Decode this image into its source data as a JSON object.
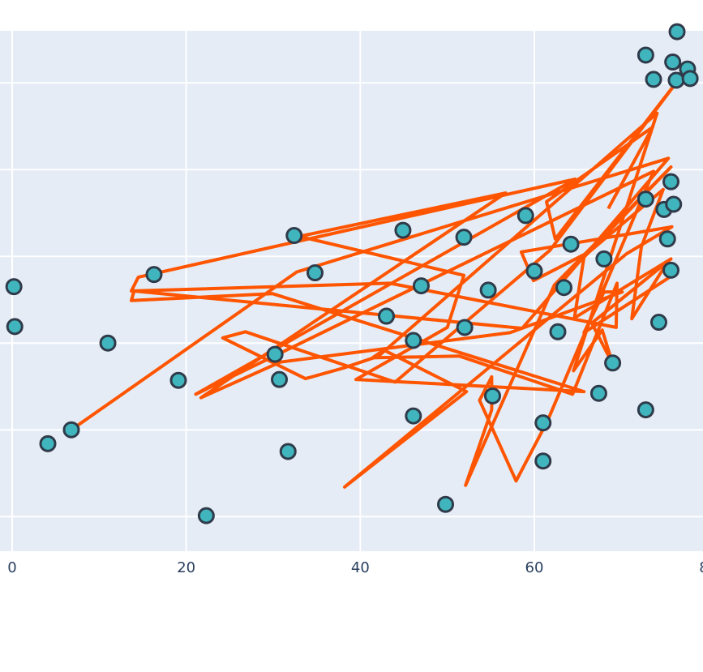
{
  "chart_data": {
    "type": "scatter",
    "x_ticks": [
      0,
      20,
      40,
      60,
      80
    ],
    "x_tick_labels": [
      "0",
      "20",
      "40",
      "60",
      "80"
    ],
    "xlim": [
      -1.5,
      79
    ],
    "ylim": [
      0,
      6
    ],
    "y_gridlines": [
      0.4,
      1.4,
      2.4,
      3.4,
      4.4,
      5.4
    ],
    "grid": true,
    "colors": {
      "background": "#e5ecf6",
      "grid": "#ffffff",
      "line": "#ff5500",
      "marker_fill": "#40b5bd",
      "marker_edge": "#2f3b4a"
    },
    "series": [
      {
        "mode": "markers",
        "points": [
          [
            0.2,
            3.05
          ],
          [
            0.3,
            2.59
          ],
          [
            4.1,
            1.24
          ],
          [
            6.8,
            1.4
          ],
          [
            11.0,
            2.4
          ],
          [
            16.3,
            3.19
          ],
          [
            19.1,
            1.97
          ],
          [
            22.3,
            0.41
          ],
          [
            30.2,
            2.27
          ],
          [
            30.7,
            1.98
          ],
          [
            31.7,
            1.15
          ],
          [
            32.4,
            3.64
          ],
          [
            34.8,
            3.21
          ],
          [
            43.0,
            2.71
          ],
          [
            44.9,
            3.7
          ],
          [
            46.1,
            2.43
          ],
          [
            46.1,
            1.56
          ],
          [
            47.0,
            3.06
          ],
          [
            49.8,
            0.54
          ],
          [
            51.9,
            3.62
          ],
          [
            52.0,
            2.58
          ],
          [
            54.7,
            3.01
          ],
          [
            55.2,
            1.79
          ],
          [
            59.0,
            3.87
          ],
          [
            60.0,
            3.23
          ],
          [
            61.0,
            1.48
          ],
          [
            61.0,
            1.04
          ],
          [
            62.7,
            2.53
          ],
          [
            63.4,
            3.04
          ],
          [
            64.2,
            3.54
          ],
          [
            67.4,
            1.82
          ],
          [
            68.0,
            3.37
          ],
          [
            69.0,
            2.17
          ],
          [
            72.8,
            5.72
          ],
          [
            72.8,
            4.06
          ],
          [
            72.8,
            1.63
          ],
          [
            73.7,
            5.44
          ],
          [
            74.3,
            2.64
          ],
          [
            74.9,
            3.94
          ],
          [
            75.3,
            3.6
          ],
          [
            75.7,
            4.26
          ],
          [
            75.7,
            3.24
          ],
          [
            75.9,
            5.64
          ],
          [
            76.0,
            4.0
          ],
          [
            76.3,
            5.43
          ],
          [
            76.4,
            5.99
          ],
          [
            77.6,
            5.56
          ],
          [
            77.9,
            5.45
          ]
        ]
      },
      {
        "mode": "lines",
        "points": [
          [
            6.8,
            1.4
          ],
          [
            32.7,
            3.22
          ],
          [
            75.4,
            4.53
          ],
          [
            58.6,
            2.57
          ],
          [
            14.0,
            3.0
          ],
          [
            13.7,
            2.89
          ],
          [
            29.9,
            2.97
          ],
          [
            65.7,
            1.84
          ],
          [
            39.5,
            1.98
          ],
          [
            50.0,
            2.58
          ],
          [
            51.9,
            3.18
          ],
          [
            33.0,
            3.63
          ],
          [
            56.7,
            4.13
          ],
          [
            21.7,
            1.77
          ],
          [
            30.8,
            2.18
          ],
          [
            57.2,
            2.52
          ],
          [
            70.1,
            2.99
          ],
          [
            68.0,
            2.99
          ],
          [
            65.7,
            2.52
          ],
          [
            75.4,
            3.15
          ],
          [
            75.4,
            3.35
          ],
          [
            71.2,
            2.68
          ],
          [
            72.3,
            3.51
          ],
          [
            74.8,
            4.17
          ],
          [
            66.3,
            3.45
          ],
          [
            59.9,
            3.12
          ],
          [
            58.5,
            3.45
          ],
          [
            75.8,
            3.74
          ],
          [
            70.6,
            3.43
          ],
          [
            38.2,
            0.74
          ],
          [
            52.2,
            1.84
          ],
          [
            42.7,
            2.32
          ],
          [
            41.4,
            2.23
          ],
          [
            51.4,
            2.25
          ],
          [
            64.4,
            1.81
          ],
          [
            69.5,
            3.09
          ],
          [
            69.4,
            2.58
          ],
          [
            43.4,
            3.09
          ],
          [
            13.7,
            3.0
          ],
          [
            14.5,
            3.16
          ],
          [
            64.7,
            4.29
          ],
          [
            21.1,
            1.81
          ],
          [
            73.7,
            4.38
          ],
          [
            61.5,
            1.5
          ],
          [
            57.9,
            0.81
          ],
          [
            53.7,
            1.74
          ],
          [
            55.1,
            2.01
          ],
          [
            55.1,
            1.63
          ],
          [
            52.1,
            0.76
          ],
          [
            62.3,
            3.07
          ],
          [
            75.7,
            4.43
          ],
          [
            65.7,
            3.39
          ],
          [
            64.6,
            2.69
          ],
          [
            75.7,
            3.37
          ],
          [
            66.6,
            2.63
          ],
          [
            69.0,
            2.16
          ],
          [
            67.8,
            2.55
          ],
          [
            64.5,
            2.08
          ],
          [
            74.1,
            5.05
          ],
          [
            42.1,
            2.25
          ],
          [
            38.0,
            2.11
          ],
          [
            33.7,
            1.99
          ],
          [
            24.2,
            2.46
          ],
          [
            26.8,
            2.53
          ],
          [
            44.0,
            1.95
          ],
          [
            61.8,
            3.47
          ],
          [
            76.9,
            5.48
          ],
          [
            62.4,
            3.6
          ],
          [
            61.4,
            4.03
          ],
          [
            73.6,
            4.89
          ],
          [
            68.5,
            3.95
          ]
        ]
      }
    ]
  }
}
